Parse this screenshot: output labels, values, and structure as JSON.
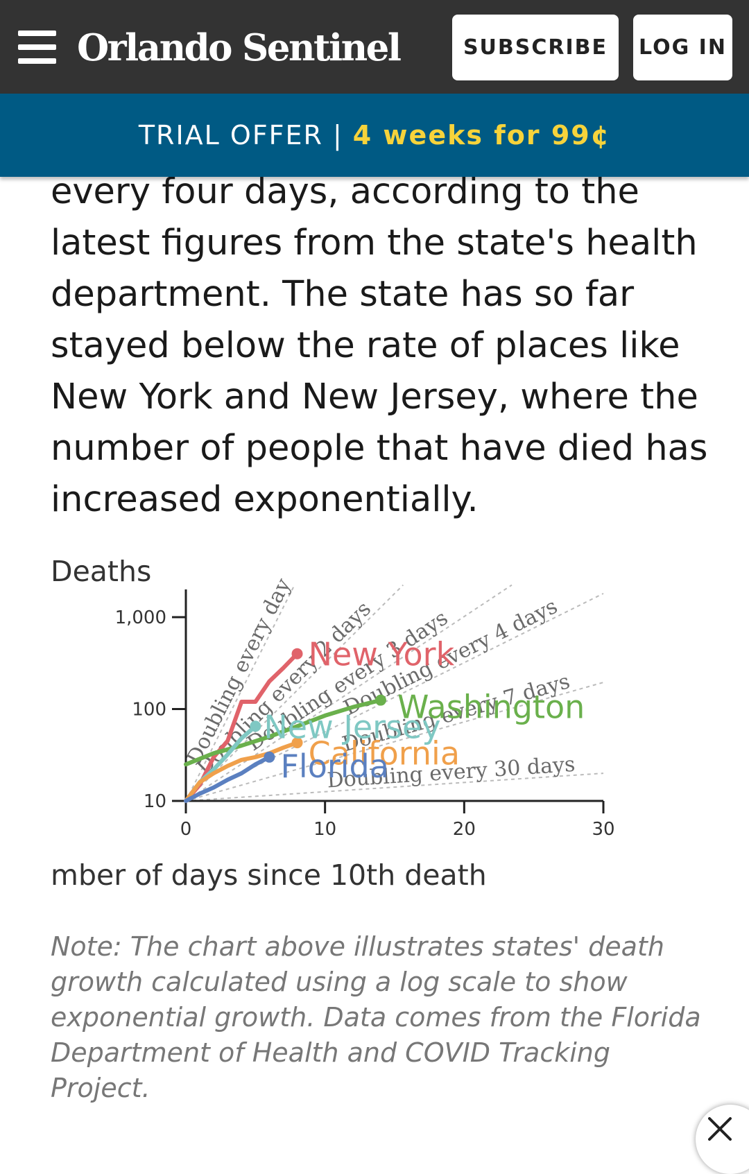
{
  "header": {
    "logo": "Orlando Sentinel",
    "subscribe_label": "SUBSCRIBE",
    "login_label": "LOG IN",
    "menu_icon": "hamburger-menu-icon"
  },
  "trial_banner": {
    "label": "TRIAL OFFER",
    "separator": "|",
    "offer": "4 weeks for 99¢",
    "offer_color": "#f6d33b",
    "background": "#005a84"
  },
  "article": {
    "lines": [
      "every four days, according to the",
      "latest figures from the state's health",
      "department. The state has so far",
      "stayed below the rate of places like",
      "New York and New Jersey, where the",
      "number of people that have died has",
      "increased exponentially."
    ]
  },
  "chart_data": {
    "type": "line",
    "ylabel": "Deaths",
    "xlabel": "mber of days since 10th death",
    "yscale": "log",
    "ylim": [
      10,
      1000
    ],
    "xlim": [
      0,
      30
    ],
    "yticks": [
      10,
      100,
      1000
    ],
    "ytick_labels": [
      "10",
      "100",
      "1,000"
    ],
    "xticks": [
      0,
      10,
      20,
      30
    ],
    "xtick_labels": [
      "0",
      "10",
      "20",
      "30"
    ],
    "reference_lines": [
      {
        "label": "Doubling every day",
        "doubling_days": 1
      },
      {
        "label": "Doubling every 2 days",
        "doubling_days": 2
      },
      {
        "label": "Doubling every 3 days",
        "doubling_days": 3
      },
      {
        "label": "Doubling every 4 days",
        "doubling_days": 4
      },
      {
        "label": "Doubling every 7 days",
        "doubling_days": 7
      },
      {
        "label": "Doubling every 30 days",
        "doubling_days": 30
      }
    ],
    "series": [
      {
        "name": "New York",
        "color": "#e0636a",
        "x": [
          0,
          1,
          2,
          3,
          4,
          5,
          6,
          7,
          8
        ],
        "y": [
          10,
          15,
          30,
          45,
          120,
          120,
          200,
          280,
          400
        ]
      },
      {
        "name": "Washington",
        "color": "#6ab04c",
        "x": [
          0,
          2,
          4,
          6,
          8,
          10,
          12,
          14
        ],
        "y": [
          25,
          33,
          40,
          50,
          65,
          85,
          105,
          125
        ]
      },
      {
        "name": "New Jersey",
        "color": "#7fc8c3",
        "x": [
          0,
          1,
          2,
          3,
          4,
          5
        ],
        "y": [
          10,
          16,
          22,
          32,
          48,
          65
        ]
      },
      {
        "name": "California",
        "color": "#f0a04b",
        "x": [
          0,
          1,
          2,
          3,
          4,
          5,
          6,
          7,
          8
        ],
        "y": [
          10,
          16,
          20,
          24,
          28,
          30,
          33,
          38,
          43
        ]
      },
      {
        "name": "Florida",
        "color": "#5b80c0",
        "x": [
          0,
          1,
          2,
          3,
          4,
          5,
          6
        ],
        "y": [
          10,
          12,
          14,
          17,
          20,
          25,
          30
        ]
      }
    ],
    "grid": false,
    "legend": "inline labels"
  },
  "note": {
    "lines": [
      "Note: The chart above illustrates states' death",
      "growth calculated using a log scale to show",
      "exponential growth. Data comes from the Florida",
      "Department of Health and COVID Tracking",
      "Project."
    ]
  },
  "close_icon": "close-x-icon"
}
